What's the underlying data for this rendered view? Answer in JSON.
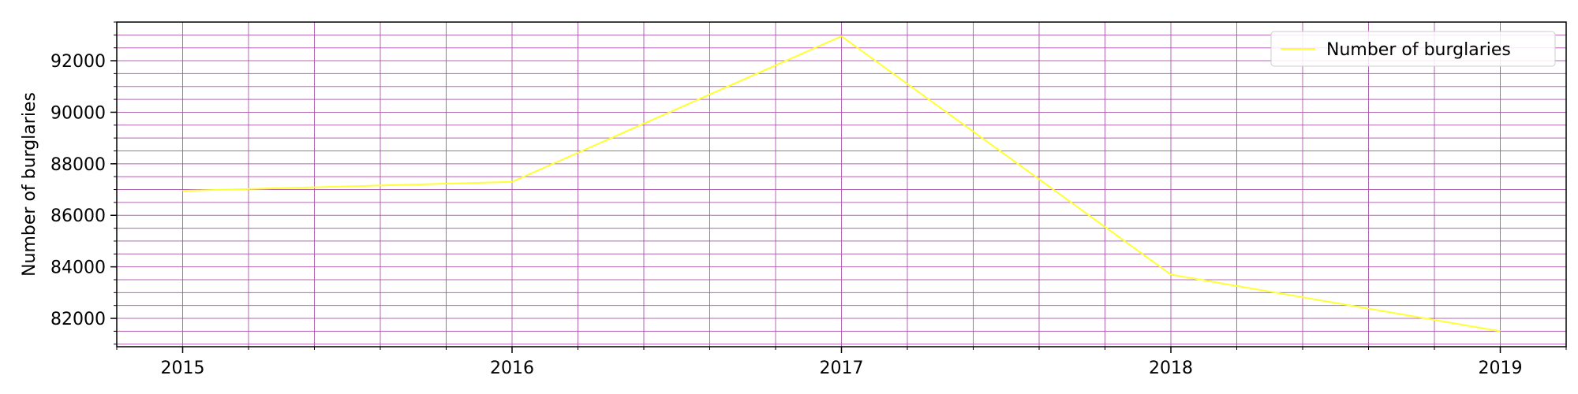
{
  "chart_data": {
    "type": "line",
    "title": "",
    "xlabel": "",
    "ylabel": "Number of burglaries",
    "x": [
      2015,
      2016,
      2017,
      2018,
      2019
    ],
    "series": [
      {
        "name": "Number of burglaries",
        "values": [
          86950,
          87300,
          92950,
          83700,
          81500
        ],
        "color": "#ffff33"
      }
    ],
    "xticks": [
      "2015",
      "2016",
      "2017",
      "2018",
      "2019"
    ],
    "yticks": [
      "82000",
      "84000",
      "86000",
      "88000",
      "90000",
      "92000"
    ],
    "xlim": [
      2014.8,
      2019.2
    ],
    "ylim": [
      80900,
      93500
    ],
    "grid": true,
    "minor_grid": true,
    "grid_color": "#a64ca6",
    "legend_position": "top-right"
  }
}
